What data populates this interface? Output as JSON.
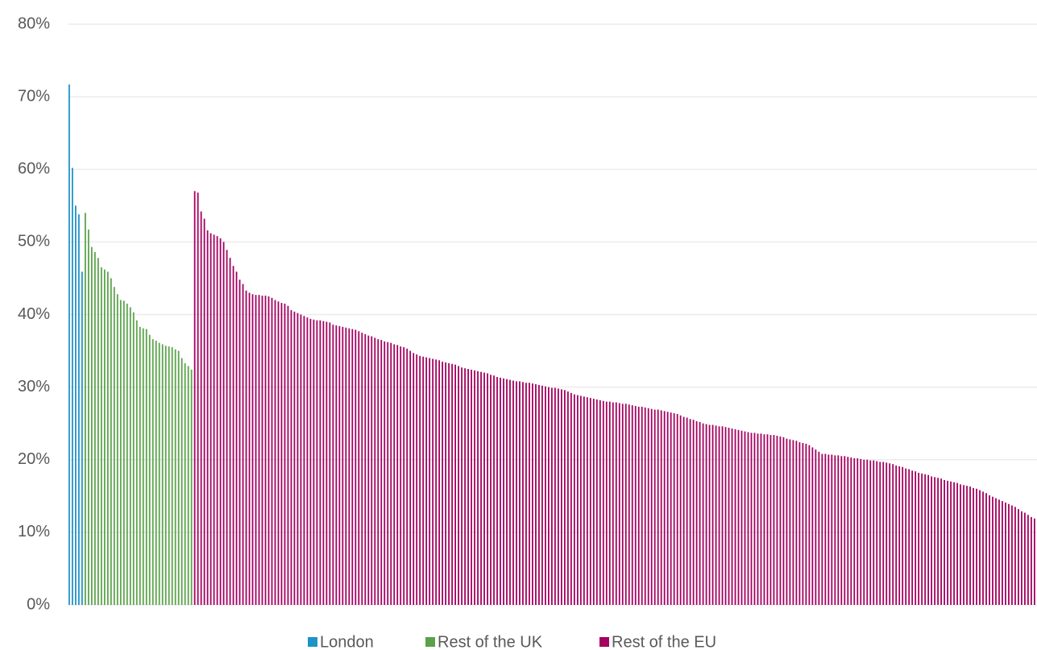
{
  "chart_data": {
    "type": "bar",
    "ylim": [
      0,
      80
    ],
    "yticks": [
      {
        "value": 0,
        "label": "0%"
      },
      {
        "value": 10,
        "label": "10%"
      },
      {
        "value": 20,
        "label": "20%"
      },
      {
        "value": 30,
        "label": "30%"
      },
      {
        "value": 40,
        "label": "40%"
      },
      {
        "value": 50,
        "label": "50%"
      },
      {
        "value": 60,
        "label": "60%"
      },
      {
        "value": 70,
        "label": "70%"
      },
      {
        "value": 80,
        "label": "80%"
      }
    ],
    "grid": true,
    "legend": "bottom",
    "series": [
      {
        "name": "London",
        "color": "#1f93c8",
        "values": [
          71.7,
          60.2,
          55,
          53.8,
          45.9
        ]
      },
      {
        "name": "Rest of the UK",
        "color": "#5aa24a",
        "values": [
          54,
          51.7,
          49.3,
          48.6,
          47.8,
          46.5,
          46.2,
          45.9,
          45,
          43.8,
          42.8,
          42,
          41.9,
          41.5,
          41,
          40.3,
          39.2,
          38.3,
          38.1,
          38,
          37.2,
          36.6,
          36.4,
          36.1,
          35.9,
          35.7,
          35.6,
          35.5,
          35.2,
          35,
          34,
          33.3,
          32.9,
          32.4
        ]
      },
      {
        "name": "Rest of the EU",
        "color": "#a3005f",
        "values": [
          57,
          56.8,
          54.2,
          53.2,
          51.6,
          51.2,
          51,
          50.8,
          50.5,
          50,
          48.9,
          47.8,
          46.7,
          45.9,
          44.8,
          44.2,
          43.3,
          43,
          42.8,
          42.7,
          42.7,
          42.6,
          42.6,
          42.5,
          42.3,
          42.0,
          41.8,
          41.6,
          41.5,
          41.2,
          40.6,
          40.4,
          40.2,
          40,
          39.8,
          39.6,
          39.4,
          39.3,
          39.2,
          39.2,
          39.1,
          39,
          38.9,
          38.6,
          38.5,
          38.4,
          38.3,
          38.2,
          38.1,
          38,
          37.9,
          37.7,
          37.5,
          37.3,
          37.1,
          37,
          36.8,
          36.6,
          36.5,
          36.3,
          36.2,
          36.1,
          35.9,
          35.8,
          35.6,
          35.5,
          35.3,
          35,
          34.7,
          34.5,
          34.3,
          34.2,
          34.1,
          34,
          33.9,
          33.8,
          33.7,
          33.5,
          33.4,
          33.3,
          33.2,
          33.1,
          32.9,
          32.7,
          32.6,
          32.5,
          32.4,
          32.3,
          32.2,
          32.1,
          32,
          31.9,
          31.7,
          31.6,
          31.4,
          31.3,
          31.2,
          31.1,
          31,
          30.9,
          30.8,
          30.8,
          30.7,
          30.6,
          30.6,
          30.5,
          30.4,
          30.3,
          30.2,
          30.1,
          30,
          29.9,
          29.9,
          29.8,
          29.7,
          29.6,
          29.4,
          29.2,
          29,
          28.9,
          28.8,
          28.7,
          28.6,
          28.5,
          28.4,
          28.3,
          28.2,
          28.1,
          28,
          28,
          27.9,
          27.9,
          27.8,
          27.7,
          27.7,
          27.6,
          27.5,
          27.4,
          27.3,
          27.3,
          27.2,
          27.1,
          27,
          26.9,
          26.9,
          26.8,
          26.7,
          26.6,
          26.5,
          26.4,
          26.3,
          26.1,
          25.9,
          25.8,
          25.6,
          25.5,
          25.3,
          25.2,
          25,
          24.9,
          24.8,
          24.8,
          24.7,
          24.6,
          24.6,
          24.5,
          24.4,
          24.3,
          24.2,
          24.1,
          24,
          23.9,
          23.8,
          23.7,
          23.7,
          23.6,
          23.6,
          23.5,
          23.5,
          23.4,
          23.4,
          23.3,
          23.2,
          23.1,
          22.9,
          22.8,
          22.7,
          22.6,
          22.4,
          22.3,
          22.2,
          22,
          21.7,
          21.4,
          21.1,
          20.8,
          20.8,
          20.7,
          20.7,
          20.6,
          20.6,
          20.5,
          20.5,
          20.4,
          20.3,
          20.2,
          20.2,
          20.1,
          20,
          20,
          19.9,
          19.9,
          19.8,
          19.7,
          19.7,
          19.6,
          19.5,
          19.4,
          19.2,
          19.1,
          19,
          18.8,
          18.7,
          18.5,
          18.4,
          18.2,
          18.1,
          18,
          17.9,
          17.7,
          17.6,
          17.5,
          17.4,
          17.2,
          17.1,
          17,
          16.9,
          16.8,
          16.6,
          16.5,
          16.4,
          16.3,
          16.1,
          16,
          15.8,
          15.6,
          15.4,
          15.1,
          14.9,
          14.7,
          14.5,
          14.3,
          14.1,
          13.9,
          13.7,
          13.5,
          13.2,
          12.9,
          12.7,
          12.4,
          12.1,
          11.9
        ]
      }
    ]
  }
}
